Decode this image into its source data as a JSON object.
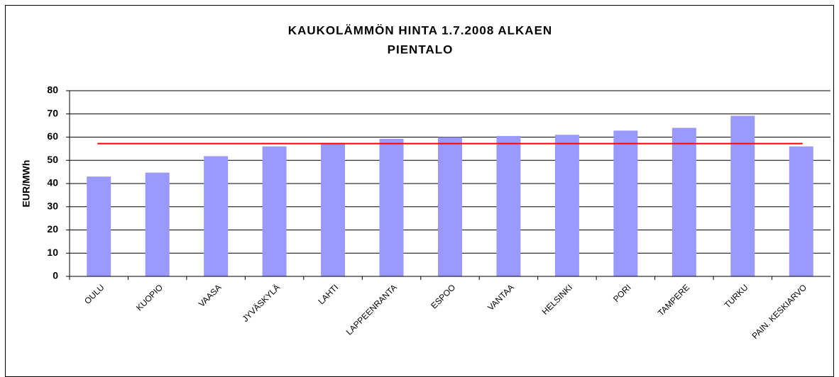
{
  "chart_data": {
    "type": "bar",
    "title": "KAUKOLÄMMÖN HINTA 1.7.2008 ALKAEN",
    "subtitle": "PIENTALO",
    "y_label": "EUR/MWh",
    "categories": [
      "OULU",
      "KUOPIO",
      "VAASA",
      "JYVÄSKYLÄ",
      "LAHTI",
      "LAPPEENRANTA",
      "ESPOO",
      "VANTAA",
      "HELSINKI",
      "PORI",
      "TAMPERE",
      "TURKU",
      "PAIN. KESKIARVO"
    ],
    "values": [
      43,
      44.7,
      51.8,
      56,
      57.5,
      59.3,
      60,
      60.5,
      61,
      62.8,
      64,
      69.2,
      56
    ],
    "color": "#9999ff",
    "reference_line": {
      "value": 57.2,
      "color": "#ff0000"
    },
    "ylim": [
      0,
      80
    ],
    "yticks": [
      0,
      10,
      20,
      30,
      40,
      50,
      60,
      70,
      80
    ],
    "grid": true
  }
}
